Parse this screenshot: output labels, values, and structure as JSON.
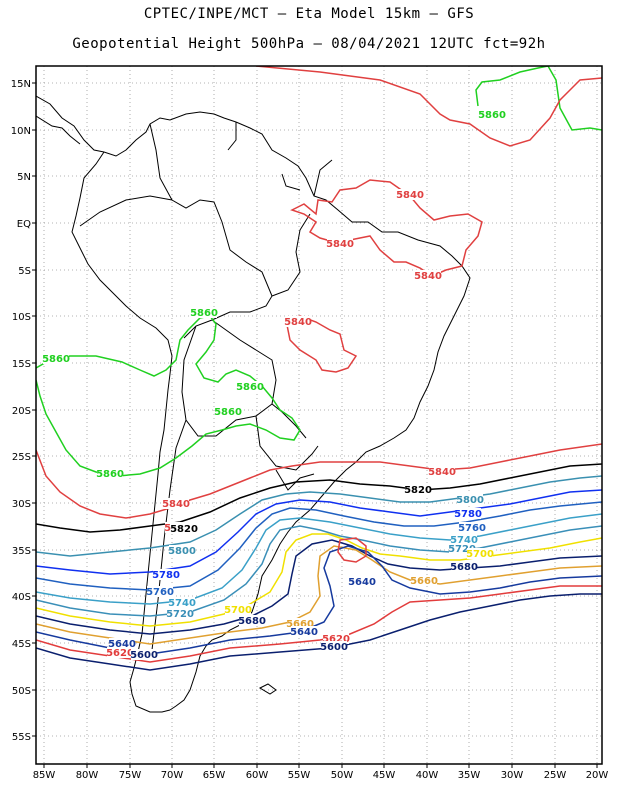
{
  "title_line1": "CPTEC/INPE/MCT –  Eta Model 15km – GFS",
  "title_line2": "Geopotential Height 500hPa – 08/04/2021 12UTC fct=92h",
  "lat_labels": [
    "15N",
    "10N",
    "5N",
    "EQ",
    "5S",
    "10S",
    "15S",
    "20S",
    "25S",
    "30S",
    "35S",
    "40S",
    "45S",
    "50S",
    "55S"
  ],
  "lon_labels": [
    "85W",
    "80W",
    "75W",
    "70W",
    "65W",
    "60W",
    "55W",
    "50W",
    "45W",
    "40W",
    "35W",
    "30W",
    "25W",
    "20W"
  ],
  "contour_colors": {
    "5600": "#0a1f6e",
    "5620": "#e23c3c",
    "5640": "#163a9e",
    "5660": "#e0a030",
    "5680": "#0a1f6e",
    "5700": "#f0e000",
    "5720": "#3a8fb8",
    "5740": "#3aa0c8",
    "5760": "#2060c0",
    "5780": "#1030f0",
    "5800": "#3a90b0",
    "5820": "#000000",
    "5840": "#e04040",
    "5860": "#20d020"
  },
  "contour_labels": [
    {
      "text": "5860",
      "level": "5860"
    },
    {
      "text": "5840",
      "level": "5840"
    },
    {
      "text": "5840",
      "level": "5840"
    },
    {
      "text": "5840",
      "level": "5840"
    },
    {
      "text": "5840",
      "level": "5840"
    },
    {
      "text": "5860",
      "level": "5860"
    },
    {
      "text": "5860",
      "level": "5860"
    },
    {
      "text": "5860",
      "level": "5860"
    },
    {
      "text": "5860",
      "level": "5860"
    },
    {
      "text": "5860",
      "level": "5860"
    },
    {
      "text": "5840",
      "level": "5840"
    },
    {
      "text": "5820",
      "level": "5820"
    },
    {
      "text": "5800",
      "level": "5800"
    },
    {
      "text": "5780",
      "level": "5780"
    },
    {
      "text": "5760",
      "level": "5760"
    },
    {
      "text": "5740",
      "level": "5740"
    },
    {
      "text": "5720",
      "level": "5720"
    },
    {
      "text": "5700",
      "level": "5700"
    },
    {
      "text": "5680",
      "level": "5680"
    },
    {
      "text": "5660",
      "level": "5660"
    },
    {
      "text": "5640",
      "level": "5640"
    },
    {
      "text": "5840",
      "level": "5840"
    },
    {
      "text": "5840",
      "level": "5840"
    },
    {
      "text": "5820",
      "level": "5820"
    },
    {
      "text": "5800",
      "level": "5800"
    },
    {
      "text": "5780",
      "level": "5780"
    },
    {
      "text": "5760",
      "level": "5760"
    },
    {
      "text": "5740",
      "level": "5740"
    },
    {
      "text": "5720",
      "level": "5720"
    },
    {
      "text": "5700",
      "level": "5700"
    },
    {
      "text": "5680",
      "level": "5680"
    },
    {
      "text": "5660",
      "level": "5660"
    },
    {
      "text": "5640",
      "level": "5640"
    },
    {
      "text": "5620",
      "level": "5620"
    },
    {
      "text": "5600",
      "level": "5600"
    },
    {
      "text": "5640",
      "level": "5640"
    },
    {
      "text": "5620",
      "level": "5620"
    },
    {
      "text": "5600",
      "level": "5600"
    }
  ]
}
